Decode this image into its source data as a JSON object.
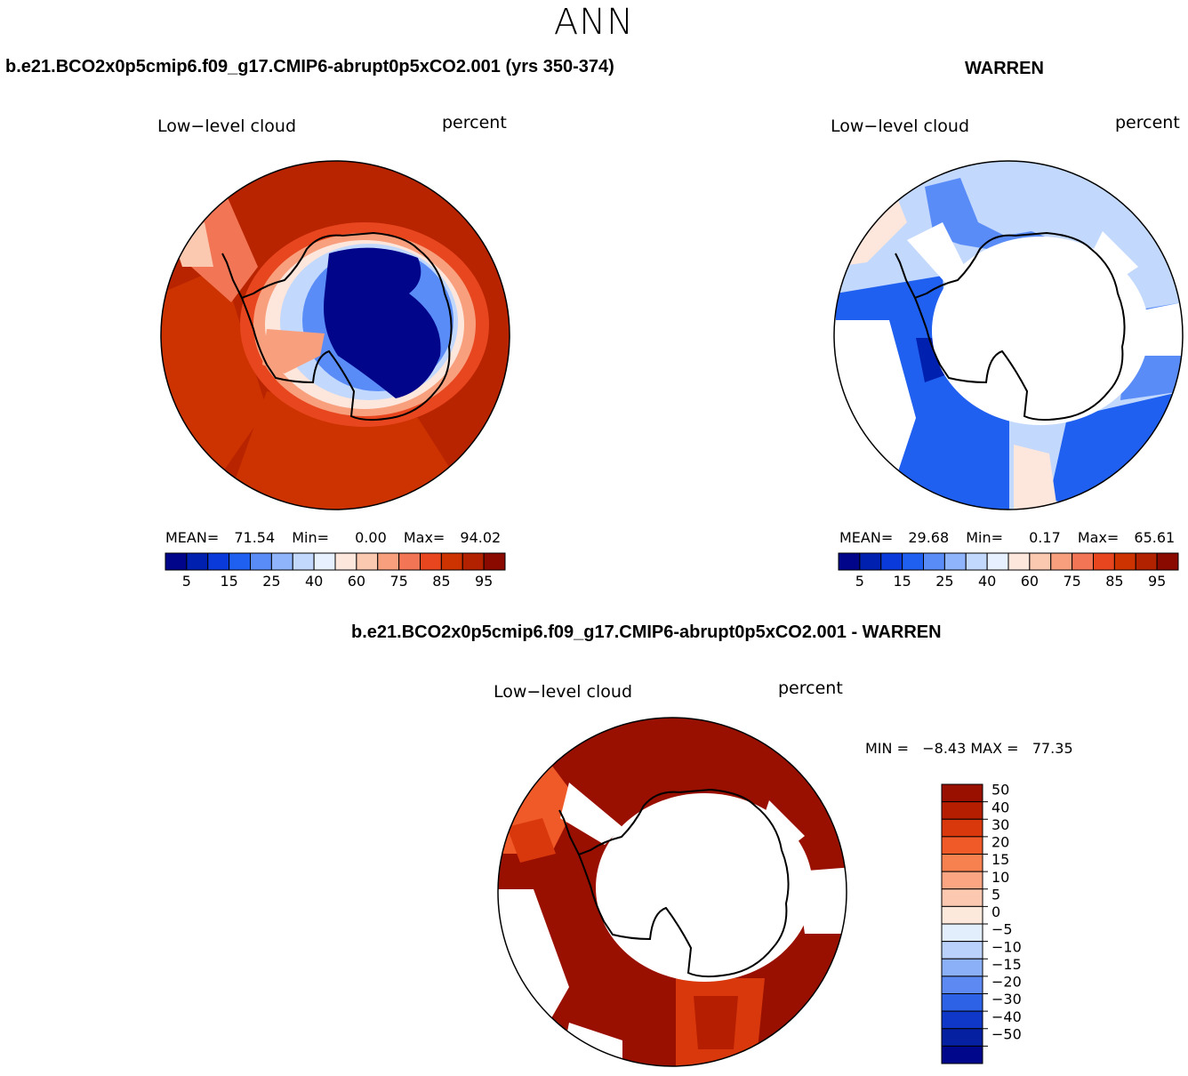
{
  "page_title": "ANN",
  "panel1": {
    "title": "b.e21.BCO2x0p5cmip6.f09_g17.CMIP6-abrupt0p5xCO2.001 (yrs 350-374)",
    "left_label": "Low−level cloud",
    "right_label": "percent",
    "stats": {
      "mean_label": "MEAN=",
      "mean": "71.54",
      "min_label": "Min=",
      "min": "0.00",
      "max_label": "Max=",
      "max": "94.02"
    }
  },
  "panel2": {
    "title": "WARREN",
    "left_label": "Low−level cloud",
    "right_label": "percent",
    "stats": {
      "mean_label": "MEAN=",
      "mean": "29.68",
      "min_label": "Min=",
      "min": "0.17",
      "max_label": "Max=",
      "max": "65.61"
    }
  },
  "panel3": {
    "title": "b.e21.BCO2x0p5cmip6.f09_g17.CMIP6-abrupt0p5xCO2.001 - WARREN",
    "left_label": "Low−level cloud",
    "right_label": "percent",
    "minmax": "MIN =   −8.43 MAX =   77.35"
  },
  "colors": {
    "ocean_model": "#b92400",
    "ocean_model_alt": "#cc3300",
    "antarctica_core": "#00058a",
    "diff_ocean": "#991000",
    "land_outline": "#000000"
  },
  "chart_data": [
    {
      "type": "heatmap",
      "projection": "south-polar-stereographic",
      "title": "Low-level cloud (model)",
      "units": "percent",
      "colorbar_ticks": [
        "5",
        "15",
        "25",
        "40",
        "60",
        "75",
        "85",
        "95"
      ],
      "colorbar_colors": [
        "#00058a",
        "#0020b0",
        "#0a3ad9",
        "#2060f0",
        "#5a8cf8",
        "#8fb4fb",
        "#c2d8fd",
        "#e6f0fe",
        "#fde6dc",
        "#fbc8b0",
        "#f8a07e",
        "#f27555",
        "#e8461f",
        "#cc3300",
        "#b22100",
        "#8b0a00"
      ],
      "mean": 71.54,
      "min": 0.0,
      "max": 94.02
    },
    {
      "type": "heatmap",
      "projection": "south-polar-stereographic",
      "title": "Low-level cloud (WARREN)",
      "units": "percent",
      "colorbar_ticks": [
        "5",
        "15",
        "25",
        "40",
        "60",
        "75",
        "85",
        "95"
      ],
      "colorbar_colors": [
        "#00058a",
        "#0020b0",
        "#0a3ad9",
        "#2060f0",
        "#5a8cf8",
        "#8fb4fb",
        "#c2d8fd",
        "#e6f0fe",
        "#fde6dc",
        "#fbc8b0",
        "#f8a07e",
        "#f27555",
        "#e8461f",
        "#cc3300",
        "#b22100",
        "#8b0a00"
      ],
      "mean": 29.68,
      "min": 0.17,
      "max": 65.61
    },
    {
      "type": "heatmap",
      "projection": "south-polar-stereographic",
      "title": "Low-level cloud (model - WARREN)",
      "units": "percent",
      "colorbar_ticks": [
        "50",
        "40",
        "30",
        "20",
        "15",
        "10",
        "5",
        "0",
        "−5",
        "−10",
        "−15",
        "−20",
        "−30",
        "−40",
        "−50"
      ],
      "colorbar_colors": [
        "#991000",
        "#b51e00",
        "#d9380c",
        "#f05a28",
        "#f8824f",
        "#fba583",
        "#fcc8b0",
        "#fde8dc",
        "#e3eefd",
        "#b9d1fb",
        "#8cb0f8",
        "#5c8af2",
        "#2e62e6",
        "#1038c8",
        "#0520a0",
        "#00078a"
      ],
      "min": -8.43,
      "max": 77.35
    }
  ]
}
